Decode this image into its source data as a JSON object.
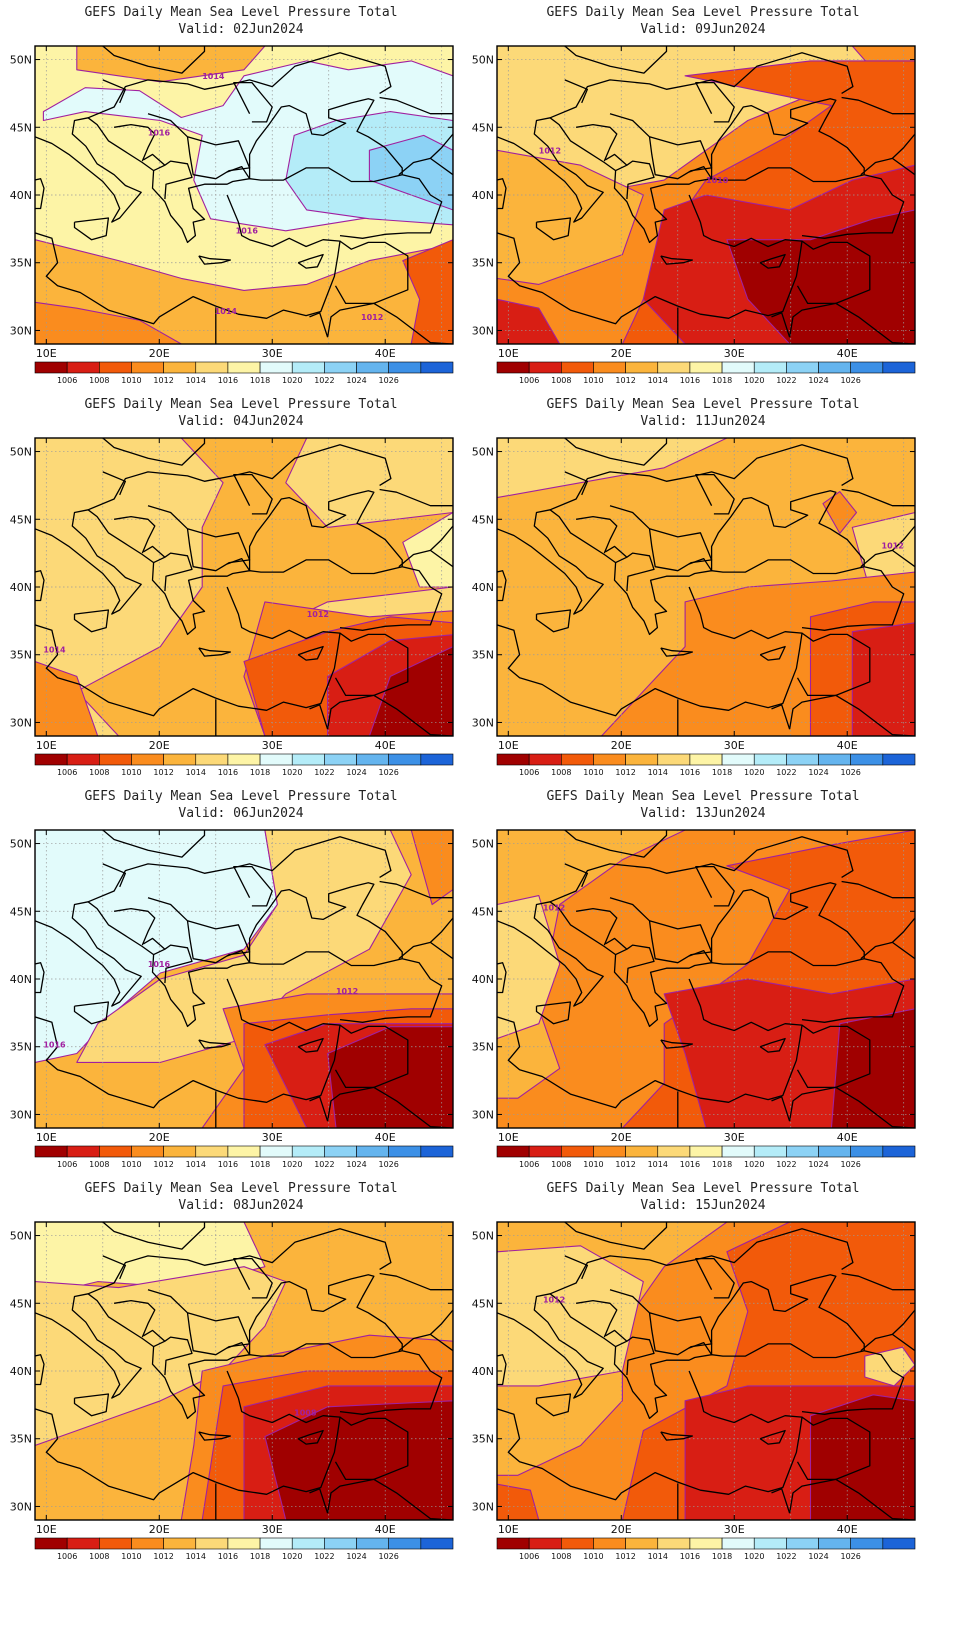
{
  "colorbar": {
    "labels": [
      "1006",
      "1008",
      "1010",
      "1012",
      "1014",
      "1016",
      "1018",
      "1020",
      "1022",
      "1024",
      "1026"
    ],
    "colors": [
      "#a00000",
      "#d81e14",
      "#f25a0a",
      "#fa8c1e",
      "#fbb43c",
      "#fcd978",
      "#fdf4a6",
      "#e2fbfb",
      "#b4ecf8",
      "#8cd2f5",
      "#64b4ee",
      "#3c90e6",
      "#1c64d8"
    ]
  },
  "lon_labels": [
    "10E",
    "20E",
    "30E",
    "40E"
  ],
  "lat_labels": [
    "50N",
    "45N",
    "40N",
    "35N",
    "30N"
  ],
  "contour_color": "#a020a0",
  "panels": [
    {
      "title": "GEFS Daily Mean Sea Level Pressure Total",
      "valid": "Valid: 02Jun2024",
      "labels": [
        "1014",
        "1016",
        "1016",
        "1014",
        "1012"
      ]
    },
    {
      "title": "GEFS Daily Mean Sea Level Pressure Total",
      "valid": "Valid: 09Jun2024",
      "labels": [
        "1012",
        "1010"
      ]
    },
    {
      "title": "GEFS Daily Mean Sea Level Pressure Total",
      "valid": "Valid: 04Jun2024",
      "labels": [
        "1014",
        "1012"
      ]
    },
    {
      "title": "GEFS Daily Mean Sea Level Pressure Total",
      "valid": "Valid: 11Jun2024",
      "labels": [
        "1012"
      ]
    },
    {
      "title": "GEFS Daily Mean Sea Level Pressure Total",
      "valid": "Valid: 06Jun2024",
      "labels": [
        "1016",
        "1016",
        "1012"
      ]
    },
    {
      "title": "GEFS Daily Mean Sea Level Pressure Total",
      "valid": "Valid: 13Jun2024",
      "labels": [
        "1012"
      ]
    },
    {
      "title": "GEFS Daily Mean Sea Level Pressure Total",
      "valid": "Valid: 08Jun2024",
      "labels": [
        "1008"
      ]
    },
    {
      "title": "GEFS Daily Mean Sea Level Pressure Total",
      "valid": "Valid: 15Jun2024",
      "labels": [
        "1012"
      ]
    }
  ]
}
